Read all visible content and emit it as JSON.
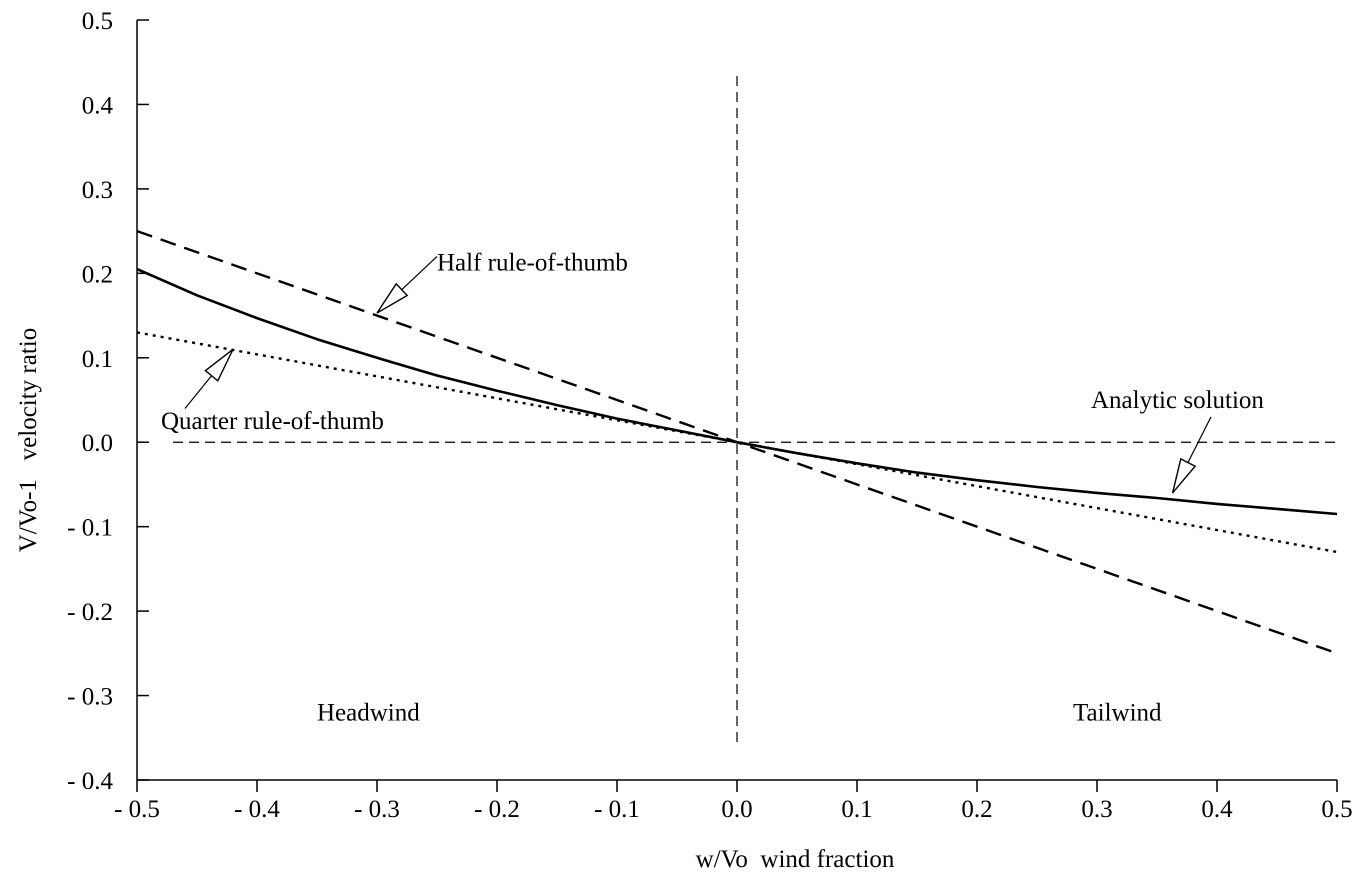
{
  "chart_data": {
    "type": "line",
    "xlabel": "w/Vo  wind fraction",
    "ylabel": "V/Vo-1   velocity ratio",
    "xlim": [
      -0.5,
      0.5
    ],
    "ylim": [
      -0.4,
      0.5
    ],
    "x_ticks": [
      -0.5,
      -0.4,
      -0.3,
      -0.2,
      -0.1,
      0.0,
      0.1,
      0.2,
      0.3,
      0.4,
      0.5
    ],
    "x_tick_labels": [
      "- 0.5",
      "- 0.4",
      "- 0.3",
      "- 0.2",
      "- 0.1",
      "0.0",
      "0.1",
      "0.2",
      "0.3",
      "0.4",
      "0.5"
    ],
    "y_ticks": [
      -0.4,
      -0.3,
      -0.2,
      -0.1,
      0.0,
      0.1,
      0.2,
      0.3,
      0.4,
      0.5
    ],
    "y_tick_labels": [
      "- 0.4",
      "- 0.3",
      "- 0.2",
      "- 0.1",
      "0.0",
      "0.1",
      "0.2",
      "0.3",
      "0.4",
      "0.5"
    ],
    "grid": false,
    "reference_lines": [
      {
        "orientation": "horizontal",
        "value": 0.0,
        "from": -0.47,
        "to": 0.5,
        "style": "dashed"
      },
      {
        "orientation": "vertical",
        "value": 0.0,
        "from": -0.355,
        "to": 0.435,
        "style": "dashed"
      }
    ],
    "series": [
      {
        "key": "analytic",
        "style": "solid",
        "x": [
          -0.5,
          -0.45,
          -0.4,
          -0.35,
          -0.3,
          -0.25,
          -0.2,
          -0.15,
          -0.1,
          -0.05,
          0.0,
          0.05,
          0.1,
          0.15,
          0.2,
          0.25,
          0.3,
          0.35,
          0.4,
          0.45,
          0.5
        ],
        "y": [
          0.205,
          0.174,
          0.147,
          0.122,
          0.1,
          0.079,
          0.061,
          0.044,
          0.028,
          0.014,
          0.0,
          -0.013,
          -0.025,
          -0.036,
          -0.045,
          -0.053,
          -0.06,
          -0.066,
          -0.073,
          -0.079,
          -0.085
        ]
      },
      {
        "key": "half",
        "style": "dashed",
        "x": [
          -0.5,
          0.5
        ],
        "y": [
          0.25,
          -0.25
        ]
      },
      {
        "key": "quarter",
        "style": "dotted",
        "x": [
          -0.5,
          0.5
        ],
        "y": [
          0.13,
          -0.13
        ]
      }
    ],
    "annotations": [
      {
        "key": "half",
        "text": "Half rule-of-thumb",
        "text_x": -0.25,
        "text_y": 0.213,
        "arrow_from": [
          -0.25,
          0.22
        ],
        "arrow_to": [
          -0.3,
          0.153
        ]
      },
      {
        "key": "quarter",
        "text": "Quarter rule-of-thumb",
        "text_x": -0.48,
        "text_y": 0.025,
        "arrow_from": [
          -0.46,
          0.04
        ],
        "arrow_to": [
          -0.42,
          0.11
        ]
      },
      {
        "key": "analytic",
        "text": "Analytic solution",
        "text_x": 0.295,
        "text_y": 0.05,
        "arrow_from": [
          0.395,
          0.03
        ],
        "arrow_to": [
          0.363,
          -0.06
        ]
      },
      {
        "key": "headwind",
        "text": "Headwind",
        "text_x": -0.35,
        "text_y": -0.32
      },
      {
        "key": "tailwind",
        "text": "Tailwind",
        "text_x": 0.28,
        "text_y": -0.32
      }
    ]
  }
}
